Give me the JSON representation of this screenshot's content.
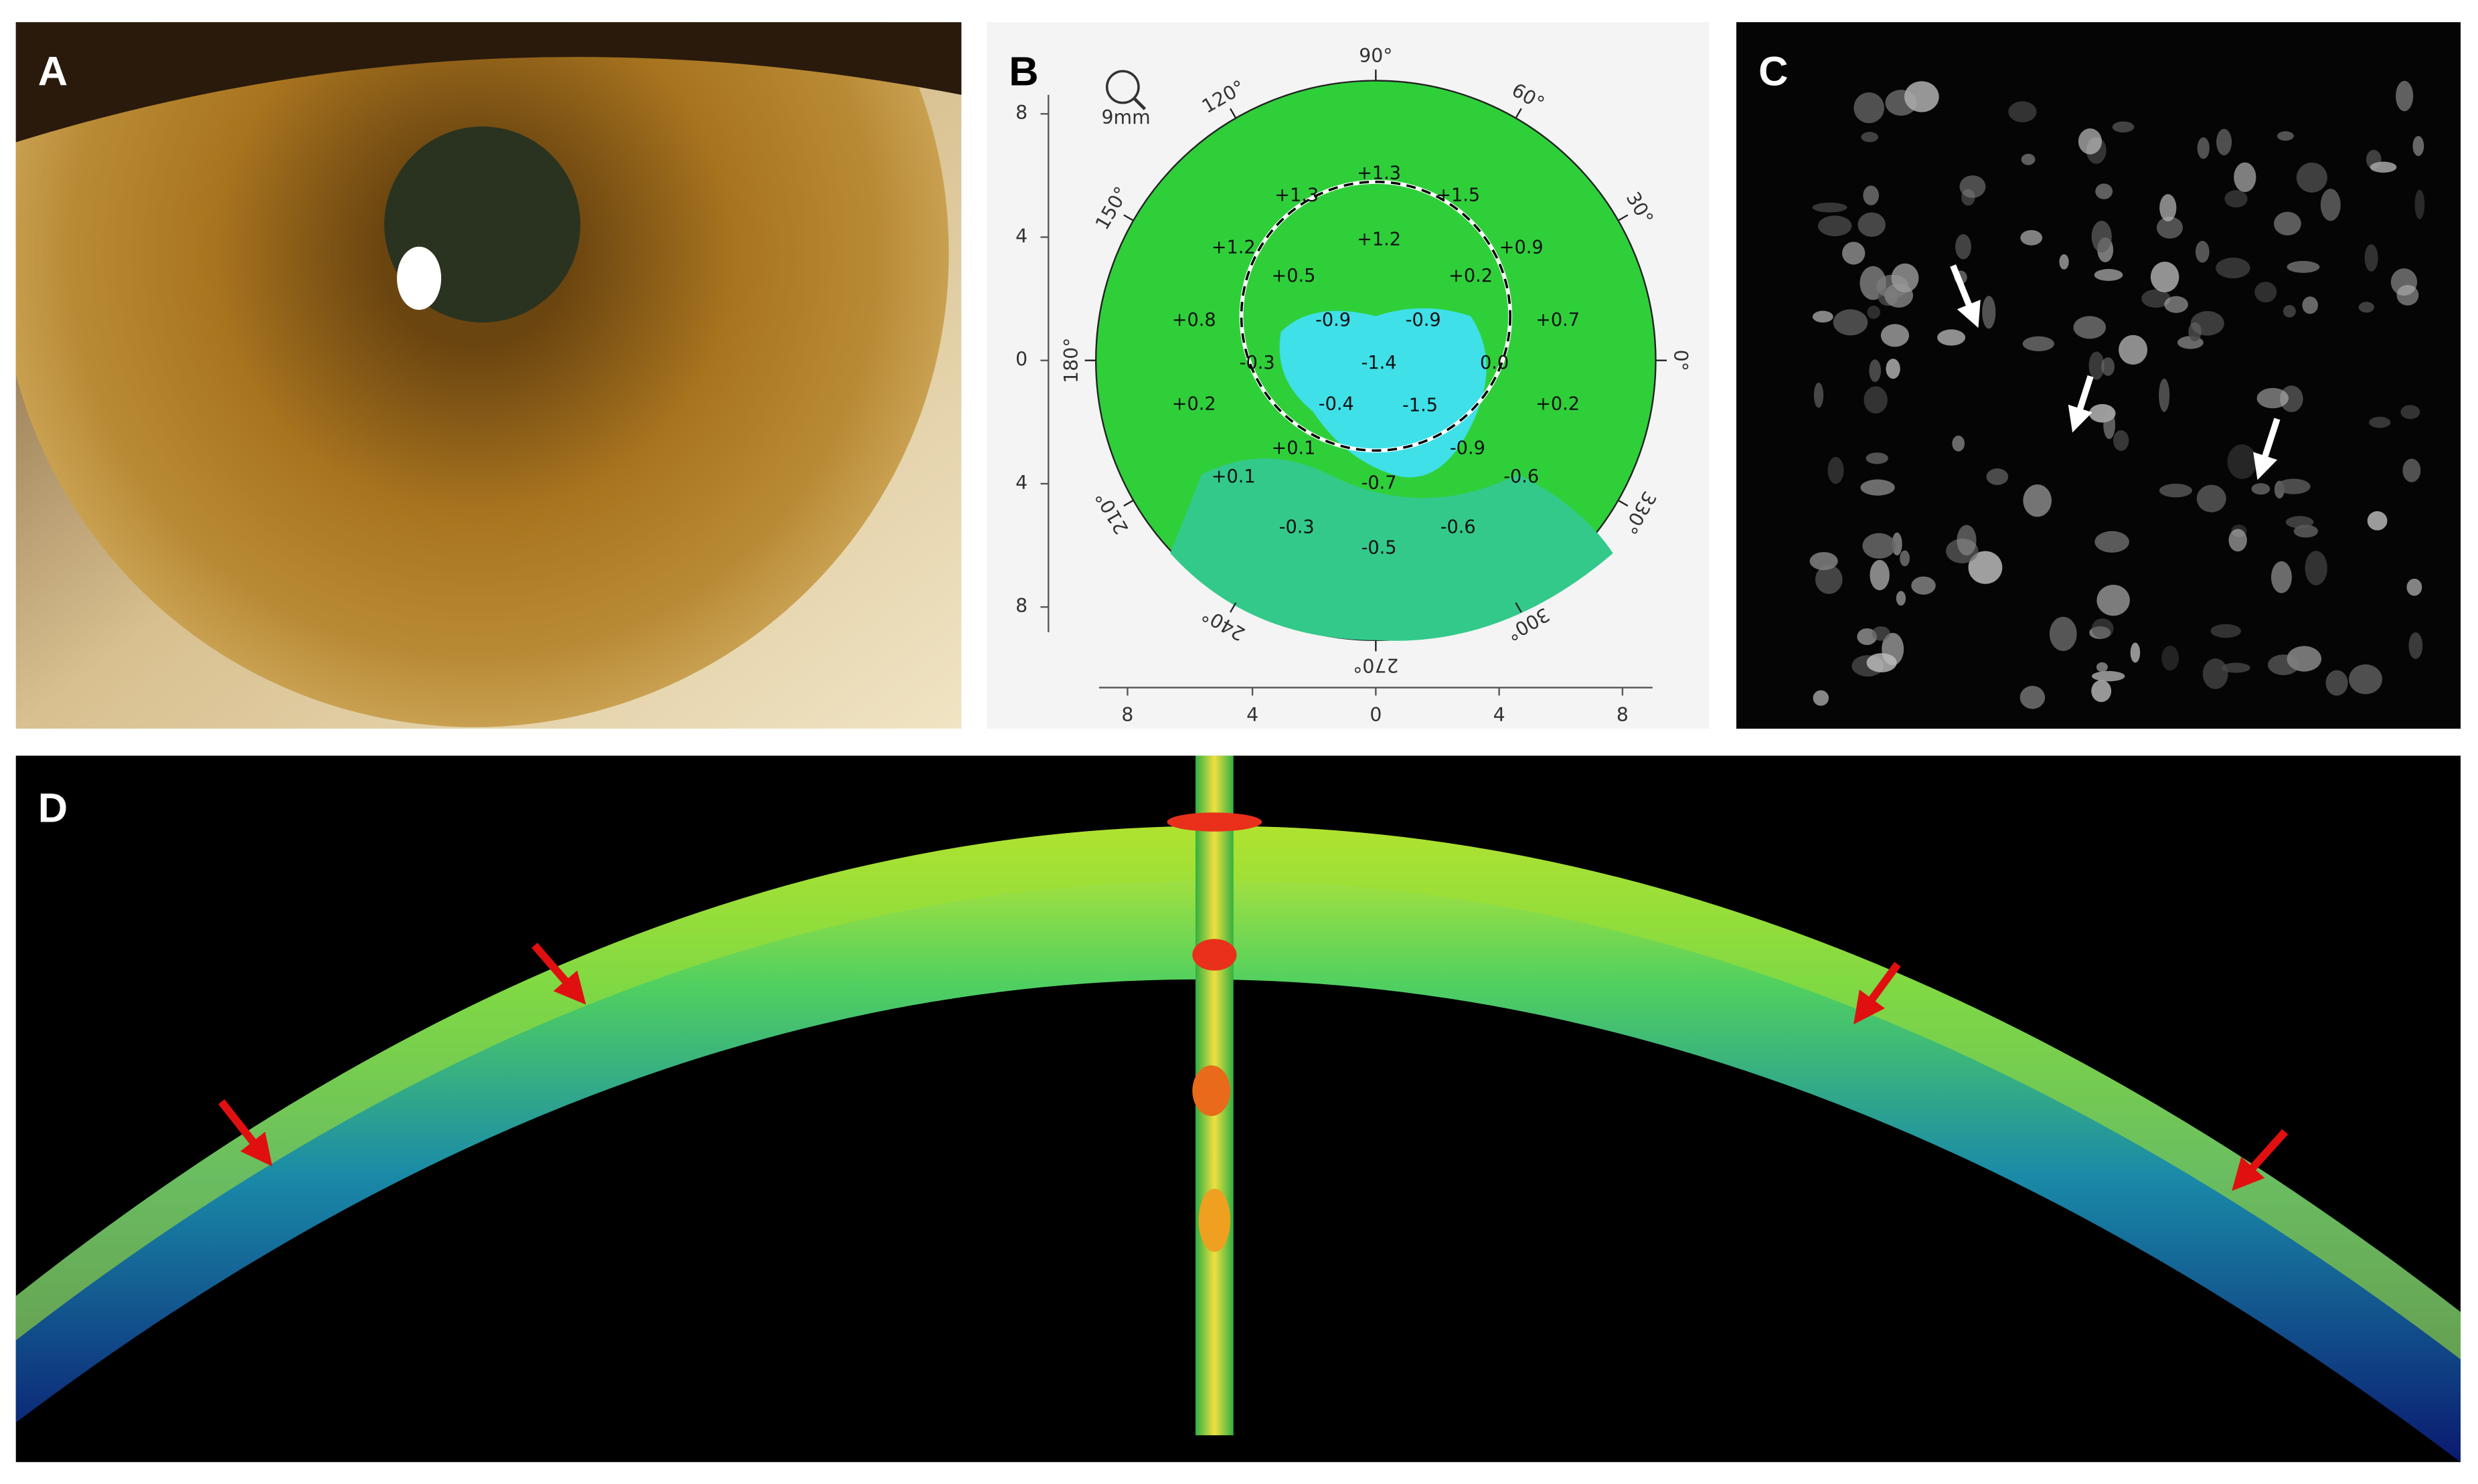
{
  "panel_labels": [
    "A",
    "B",
    "C",
    "D"
  ],
  "topography": {
    "magnifier_label": "9mm",
    "y_axis_ticks": [
      "8",
      "4",
      "0",
      "4",
      "8"
    ],
    "x_axis_ticks": [
      "8",
      "4",
      "0",
      "4",
      "8"
    ],
    "angle_labels": [
      "90°",
      "60°",
      "30°",
      "0°",
      "330°",
      "300°",
      "270°",
      "240°",
      "210°",
      "180°",
      "150°",
      "120°"
    ],
    "map_values": [
      "+1.3",
      "+1.3",
      "+1.5",
      "+1.2",
      "+1.2",
      "+0.9",
      "+0.5",
      "+0.2",
      "+0.8",
      "-0.9",
      "-0.9",
      "+0.7",
      "-0.3",
      "-1.4",
      "0.0",
      "+0.2",
      "-0.4",
      "-1.5",
      "+0.2",
      "+0.1",
      "-0.9",
      "+0.1",
      "-0.7",
      "-0.6",
      "-0.3",
      "-0.6",
      "-0.5"
    ]
  }
}
